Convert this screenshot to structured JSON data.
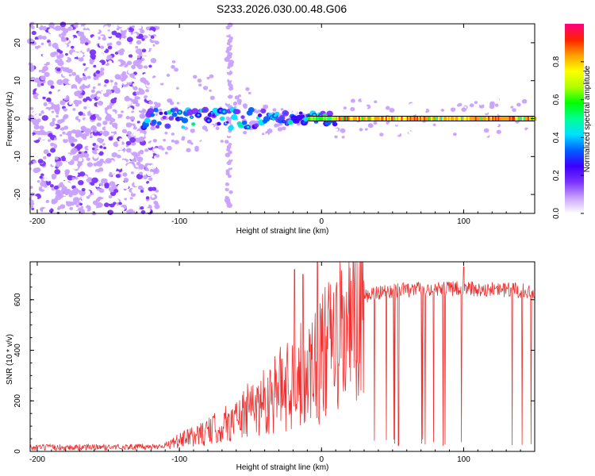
{
  "title": "S233.2026.030.00.48.G06",
  "chart_data": [
    {
      "type": "heatmap",
      "xlabel": "Height of straight line (km)",
      "ylabel": "Frequency (Hz)",
      "xlim": [
        -205,
        150
      ],
      "ylim": [
        -25,
        25
      ],
      "xticks": [
        -200,
        -100,
        0,
        100
      ],
      "xtick_labels": [
        "-200",
        "-100",
        "0",
        "100"
      ],
      "yticks": [
        -20,
        -10,
        0,
        10,
        20
      ],
      "ytick_labels": [
        "-20",
        "-10",
        "0",
        "10",
        "20"
      ],
      "colorbar": {
        "label": "Normalized spectral amplitude",
        "range": [
          0,
          1
        ],
        "ticks": [
          0.0,
          0.2,
          0.4,
          0.6,
          0.8
        ],
        "tick_labels": [
          "0.0",
          "0.2",
          "0.4",
          "0.6",
          "0.8"
        ],
        "colors": [
          "#ffffff",
          "#c8a0ff",
          "#7a30ff",
          "#3a00ff",
          "#0060ff",
          "#00e0ff",
          "#00ff90",
          "#00ff00",
          "#b0ff00",
          "#ffff00",
          "#ffa000",
          "#ff2000",
          "#ff0080"
        ]
      },
      "features": {
        "noise_region_x": [
          -205,
          -115
        ],
        "carrier_line_freq": 0.0,
        "carrier_strong_from_x": 10,
        "vertical_spur_x": -65
      }
    },
    {
      "type": "line",
      "xlabel": "Height of straight line (km)",
      "ylabel": "SNR (10 * v/v)",
      "xlim": [
        -205,
        150
      ],
      "ylim": [
        0,
        750
      ],
      "xticks": [
        -200,
        -100,
        0,
        100
      ],
      "xtick_labels": [
        "-200",
        "-100",
        "0",
        "100"
      ],
      "yticks": [
        0,
        200,
        400,
        600
      ],
      "ytick_labels": [
        "0",
        "200",
        "400",
        "600"
      ],
      "color": "#f03030",
      "profile_x": [
        -205,
        -120,
        -110,
        -100,
        -80,
        -60,
        -40,
        -20,
        -10,
        0,
        10,
        20,
        30,
        40,
        60,
        80,
        100,
        120,
        150
      ],
      "profile_y": [
        15,
        18,
        25,
        50,
        90,
        150,
        240,
        330,
        380,
        430,
        510,
        570,
        610,
        630,
        640,
        640,
        645,
        640,
        635
      ],
      "peaks": [
        {
          "x": -19,
          "y": 720
        },
        {
          "x": -13,
          "y": 700
        },
        {
          "x": -3,
          "y": 750
        },
        {
          "x": 100,
          "y": 730
        }
      ]
    }
  ]
}
